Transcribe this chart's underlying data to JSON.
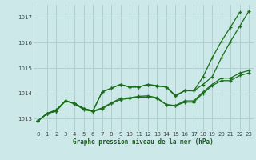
{
  "background_color": "#cce8e8",
  "grid_color": "#b0d0d0",
  "line_color": "#1a6e1a",
  "xlabel": "Graphe pression niveau de la mer (hPa)",
  "ylim": [
    1012.5,
    1017.5
  ],
  "xlim": [
    -0.5,
    23.5
  ],
  "yticks": [
    1013,
    1014,
    1015,
    1016,
    1017
  ],
  "xticks": [
    0,
    1,
    2,
    3,
    4,
    5,
    6,
    7,
    8,
    9,
    10,
    11,
    12,
    13,
    14,
    15,
    16,
    17,
    18,
    19,
    20,
    21,
    22,
    23
  ],
  "series": [
    {
      "x": [
        0,
        1,
        2,
        3,
        4,
        5,
        6,
        7,
        8,
        9,
        10,
        11,
        12,
        13,
        14,
        15,
        16,
        17,
        18,
        19,
        20,
        21,
        22,
        23
      ],
      "y": [
        1012.9,
        1013.2,
        1013.3,
        1013.7,
        1013.6,
        1013.35,
        1013.28,
        1013.38,
        1013.6,
        1013.75,
        1013.8,
        1013.85,
        1013.85,
        1013.8,
        1013.55,
        1013.5,
        1013.65,
        1013.65,
        1014.0,
        1014.3,
        1014.5,
        1014.5,
        1014.7,
        1014.8
      ]
    },
    {
      "x": [
        0,
        1,
        2,
        3,
        4,
        5,
        6,
        7,
        8,
        9,
        10,
        11,
        12,
        13,
        14,
        15,
        16,
        17,
        18,
        19,
        20,
        21,
        22,
        23
      ],
      "y": [
        1012.9,
        1013.2,
        1013.35,
        1013.7,
        1013.58,
        1013.38,
        1013.3,
        1013.42,
        1013.62,
        1013.8,
        1013.82,
        1013.88,
        1013.9,
        1013.82,
        1013.55,
        1013.52,
        1013.7,
        1013.7,
        1014.05,
        1014.35,
        1014.6,
        1014.6,
        1014.8,
        1014.9
      ]
    },
    {
      "x": [
        0,
        1,
        2,
        3,
        4,
        5,
        6,
        7,
        8,
        9,
        10,
        11,
        12,
        13,
        14,
        15,
        16,
        17,
        18,
        19,
        20,
        21,
        22,
        23
      ],
      "y": [
        1012.9,
        1013.2,
        1013.3,
        1013.7,
        1013.6,
        1013.4,
        1013.3,
        1014.05,
        1014.2,
        1014.35,
        1014.25,
        1014.25,
        1014.35,
        1014.28,
        1014.25,
        1013.88,
        1014.1,
        1014.1,
        1014.65,
        1015.4,
        1016.05,
        1016.62,
        1017.2,
        null
      ]
    },
    {
      "x": [
        0,
        1,
        2,
        3,
        4,
        5,
        6,
        7,
        8,
        9,
        10,
        11,
        12,
        13,
        14,
        15,
        16,
        17,
        18,
        19,
        20,
        21,
        22,
        23
      ],
      "y": [
        1012.9,
        1013.2,
        1013.3,
        1013.7,
        1013.6,
        1013.4,
        1013.3,
        1014.05,
        1014.2,
        1014.35,
        1014.25,
        1014.25,
        1014.35,
        1014.3,
        1014.25,
        1013.92,
        1014.1,
        1014.1,
        1014.35,
        1014.65,
        1015.4,
        1016.05,
        1016.65,
        1017.25
      ]
    }
  ]
}
